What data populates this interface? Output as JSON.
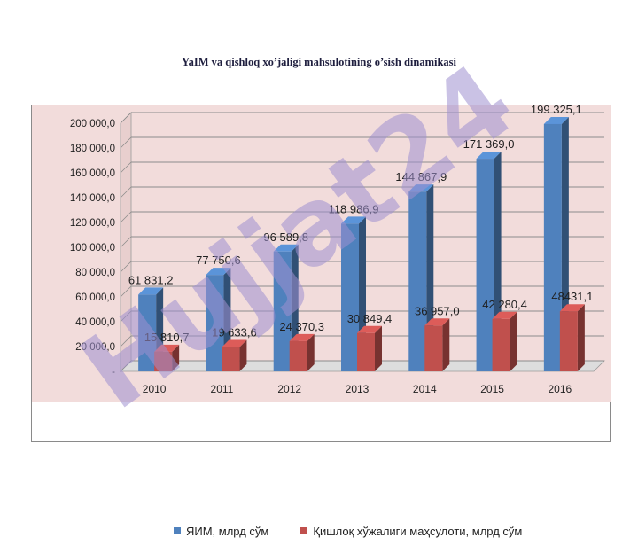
{
  "page": {
    "title": "YaIM va qishloq  xo’jaligi mahsulotining o’sish dinamikasi"
  },
  "colors": {
    "series_blue": "#4f81bd",
    "series_red": "#c0504d",
    "plot_bg": "#f2dcdb",
    "watermark": "#9f8fd0"
  },
  "watermark": {
    "text": "Hujjat24"
  },
  "chart_data": {
    "type": "bar",
    "categories": [
      "2010",
      "2011",
      "2012",
      "2013",
      "2014",
      "2015",
      "2016"
    ],
    "ylim": [
      0,
      200000
    ],
    "y_ticks": [
      "-",
      "20 000,0",
      "40 000,0",
      "60 000,0",
      "80 000,0",
      "100 000,0",
      "120 000,0",
      "140 000,0",
      "160 000,0",
      "180 000,0",
      "200 000,0"
    ],
    "grid": true,
    "legend_position": "bottom",
    "series": [
      {
        "name": "ЯИМ, млрд сўм",
        "values": [
          61831.2,
          77750.6,
          96589.8,
          118986.9,
          144867.9,
          171369.0,
          199325.1
        ],
        "labels": [
          "61 831,2",
          "77 750,6",
          "96 589,8",
          "118 986,9",
          "144 867,9",
          "171 369,0",
          "199 325,1"
        ]
      },
      {
        "name": "Қишлоқ хўжалиги маҳсулоти, млрд сўм",
        "values": [
          15810.7,
          19633.6,
          24370.3,
          30849.4,
          36957.0,
          42280.4,
          48431.1
        ],
        "labels": [
          "15 810,7",
          "19 633,6",
          "24 370,3",
          "30 849,4",
          "36 957,0",
          "42 280,4",
          "48431,1"
        ]
      }
    ]
  }
}
